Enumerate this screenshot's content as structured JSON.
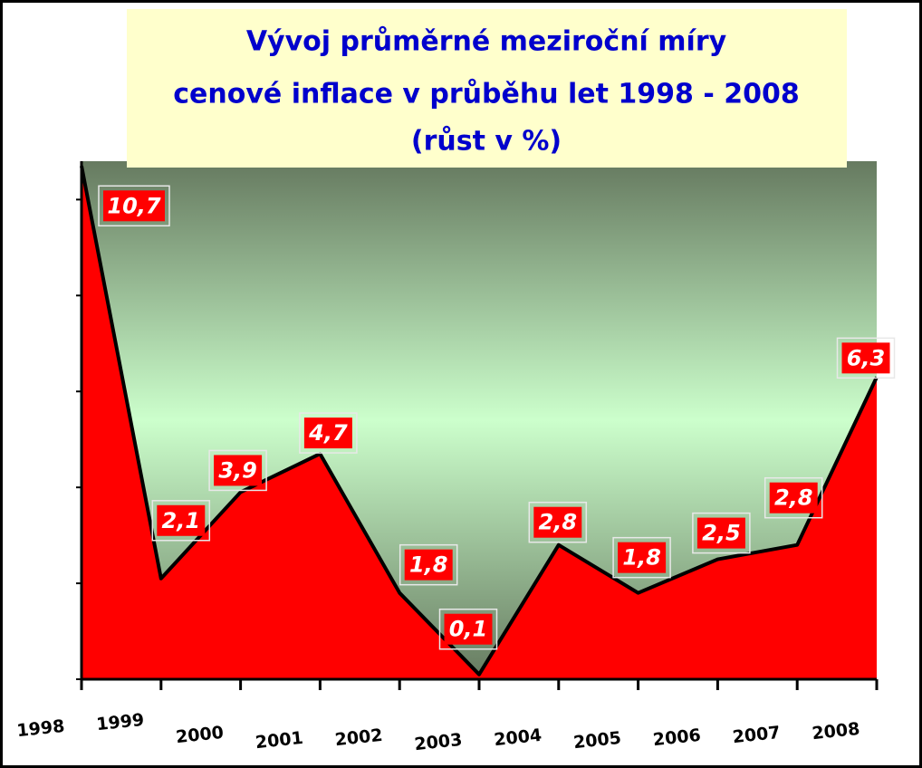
{
  "chart_data": {
    "type": "area",
    "title_lines": [
      "Vývoj průměrné meziroční míry",
      "cenové inflace v průběhu let 1998 - 2008",
      "(růst  v %)"
    ],
    "categories": [
      "1998",
      "1999",
      "2000",
      "2001",
      "2002",
      "2003",
      "2004",
      "2005",
      "2006",
      "2007",
      "2008"
    ],
    "values": [
      10.7,
      2.1,
      3.9,
      4.7,
      1.8,
      0.1,
      2.8,
      1.8,
      2.5,
      2.8,
      6.3
    ],
    "value_labels": [
      "10,7",
      "2,1",
      "3,9",
      "4,7",
      "1,8",
      "0,1",
      "2,8",
      "1,8",
      "2,5",
      "2,8",
      "6,3"
    ],
    "color": "#ff0000",
    "ylim": [
      0,
      10.8
    ],
    "yticks": [
      0,
      2,
      4,
      6,
      8,
      10
    ]
  }
}
